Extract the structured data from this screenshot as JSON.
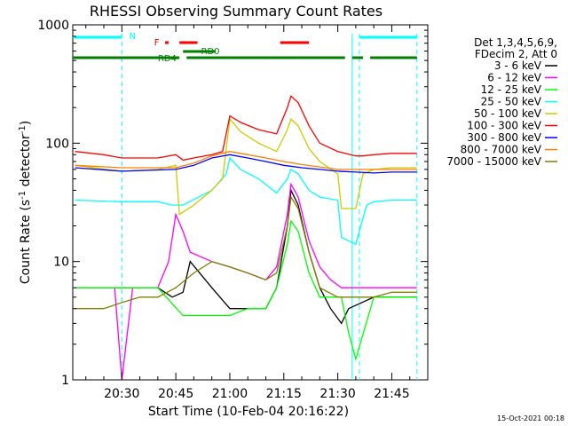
{
  "chart_data": {
    "type": "line",
    "title": "RHESSI Observing Summary Count Rates",
    "xlabel": "Start Time (10-Feb-04 20:16:22)",
    "ylabel": "Count Rate (s",
    "ylabel_sup1": "-1",
    "ylabel_mid": " detector",
    "ylabel_sup2": "-1",
    "ylabel_end": ")",
    "y_scale": "log",
    "ylim": [
      1,
      1000
    ],
    "xlim": [
      "20:16:22",
      "21:55:00"
    ],
    "x_ticks": [
      "20:30",
      "20:45",
      "21:00",
      "21:15",
      "21:30",
      "21:45"
    ],
    "y_ticks": [
      "1",
      "10",
      "100",
      "1000"
    ],
    "legend_placement": "right",
    "legend_header": [
      "Det 1,3,4,5,6,9,",
      "FDecim 2, Att 0"
    ],
    "series": [
      {
        "name": "3 - 6 keV",
        "color": "#000000",
        "x": [
          "20:17",
          "20:30",
          "20:33",
          "20:40",
          "20:44",
          "20:47",
          "20:49",
          "20:55",
          "21:00",
          "21:05",
          "21:10",
          "21:13",
          "21:16",
          "21:17",
          "21:19",
          "21:22",
          "21:25",
          "21:28",
          "21:31",
          "21:33",
          "21:40",
          "21:45",
          "21:50",
          "21:52"
        ],
        "y": [
          6,
          6,
          6,
          6,
          5,
          5.5,
          10,
          6,
          4,
          4,
          4,
          6,
          20,
          40,
          30,
          12,
          6,
          4,
          3,
          4,
          5,
          5,
          5,
          5
        ]
      },
      {
        "name": "6 - 12 keV",
        "color": "#ff00ff",
        "x": [
          "20:17",
          "20:28",
          "20:30",
          "20:33",
          "20:40",
          "20:43",
          "20:45",
          "20:47",
          "20:49",
          "20:55",
          "21:00",
          "21:05",
          "21:10",
          "21:13",
          "21:16",
          "21:17",
          "21:19",
          "21:22",
          "21:25",
          "21:28",
          "21:31",
          "21:33",
          "21:40",
          "21:45",
          "21:52"
        ],
        "y": [
          6,
          6,
          1,
          6,
          6,
          10,
          25,
          18,
          12,
          10,
          9,
          8,
          7,
          9,
          25,
          45,
          35,
          15,
          9,
          7,
          6,
          6,
          6,
          6,
          6
        ]
      },
      {
        "name": "12 - 25 keV",
        "color": "#00ff00",
        "x": [
          "20:17",
          "20:30",
          "20:40",
          "20:47",
          "21:00",
          "21:05",
          "21:10",
          "21:13",
          "21:16",
          "21:17",
          "21:19",
          "21:22",
          "21:25",
          "21:31",
          "21:33",
          "21:35",
          "21:40",
          "21:45",
          "21:52"
        ],
        "y": [
          6,
          6,
          6,
          3.5,
          3.5,
          4,
          4,
          6,
          14,
          22,
          18,
          8,
          5,
          5,
          2.5,
          1.5,
          5,
          5,
          5
        ]
      },
      {
        "name": "25 - 50 keV",
        "color": "#00ffff",
        "x": [
          "20:17",
          "20:30",
          "20:40",
          "20:44",
          "20:47",
          "20:55",
          "20:59",
          "21:00",
          "21:03",
          "21:08",
          "21:13",
          "21:16",
          "21:17",
          "21:19",
          "21:22",
          "21:25",
          "21:30",
          "21:31",
          "21:35",
          "21:38",
          "21:40",
          "21:45",
          "21:52"
        ],
        "y": [
          33,
          32,
          32,
          30,
          30,
          40,
          55,
          75,
          60,
          50,
          38,
          50,
          60,
          55,
          40,
          35,
          33,
          16,
          14,
          30,
          32,
          33,
          33
        ]
      },
      {
        "name": "50 - 100 keV",
        "color": "#cccc00",
        "x": [
          "20:17",
          "20:30",
          "20:40",
          "20:45",
          "20:46",
          "20:50",
          "20:55",
          "20:58",
          "21:00",
          "21:03",
          "21:08",
          "21:13",
          "21:16",
          "21:17",
          "21:19",
          "21:22",
          "21:25",
          "21:30",
          "21:31",
          "21:33",
          "21:35",
          "21:37",
          "21:40",
          "21:45",
          "21:52"
        ],
        "y": [
          65,
          58,
          60,
          65,
          25,
          30,
          40,
          50,
          160,
          125,
          100,
          85,
          130,
          160,
          140,
          90,
          70,
          55,
          28,
          28,
          28,
          55,
          60,
          62,
          62
        ]
      },
      {
        "name": "100 - 300 keV",
        "color": "#ff0000",
        "x": [
          "20:17",
          "20:25",
          "20:30",
          "20:40",
          "20:45",
          "20:47",
          "20:50",
          "20:55",
          "20:58",
          "21:00",
          "21:03",
          "21:08",
          "21:13",
          "21:16",
          "21:17",
          "21:19",
          "21:22",
          "21:25",
          "21:30",
          "21:35",
          "21:37",
          "21:40",
          "21:45",
          "21:52"
        ],
        "y": [
          85,
          80,
          75,
          75,
          80,
          72,
          75,
          80,
          85,
          170,
          150,
          130,
          120,
          200,
          250,
          220,
          140,
          100,
          85,
          78,
          78,
          80,
          82,
          82
        ]
      },
      {
        "name": "300 - 800 keV",
        "color": "#0000ff",
        "x": [
          "20:17",
          "20:30",
          "20:45",
          "20:50",
          "20:55",
          "21:00",
          "21:05",
          "21:10",
          "21:15",
          "21:20",
          "21:25",
          "21:30",
          "21:35",
          "21:40",
          "21:45",
          "21:52"
        ],
        "y": [
          62,
          58,
          60,
          65,
          75,
          80,
          75,
          70,
          65,
          62,
          60,
          58,
          57,
          56,
          57,
          57
        ]
      },
      {
        "name": "800 - 7000 keV",
        "color": "#ff8000",
        "x": [
          "20:17",
          "20:30",
          "20:45",
          "20:50",
          "20:55",
          "21:00",
          "21:05",
          "21:10",
          "21:15",
          "21:20",
          "21:25",
          "21:30",
          "21:35",
          "21:40",
          "21:45",
          "21:52"
        ],
        "y": [
          65,
          62,
          62,
          68,
          78,
          85,
          80,
          75,
          70,
          66,
          63,
          60,
          60,
          60,
          60,
          60
        ]
      },
      {
        "name": "7000 - 15000 keV",
        "color": "#808000",
        "x": [
          "20:17",
          "20:25",
          "20:30",
          "20:35",
          "20:40",
          "20:45",
          "20:50",
          "20:55",
          "21:00",
          "21:05",
          "21:10",
          "21:13",
          "21:16",
          "21:17",
          "21:19",
          "21:22",
          "21:25",
          "21:30",
          "21:35",
          "21:40",
          "21:45",
          "21:52"
        ],
        "y": [
          4,
          4,
          4.5,
          5,
          5,
          6,
          8,
          10,
          9,
          8,
          7,
          8,
          20,
          35,
          28,
          12,
          6,
          5,
          5,
          5,
          5.5,
          5.5
        ]
      }
    ],
    "flags": [
      {
        "name": "N",
        "color": "#00ffff",
        "segments": [
          [
            "20:16",
            "20:30"
          ],
          [
            "21:36",
            "21:52"
          ]
        ]
      },
      {
        "name": "F",
        "color": "#ff0000",
        "segments": [
          [
            "20:42",
            "20:43"
          ],
          [
            "20:46",
            "20:51"
          ],
          [
            "21:14",
            "21:22"
          ]
        ]
      },
      {
        "name": "RD0",
        "color": "#008000",
        "segments": [
          [
            "20:47",
            "20:56"
          ]
        ]
      },
      {
        "name": "RD4",
        "color": "#008000",
        "segments": [
          [
            "20:16",
            "20:46"
          ],
          [
            "20:48",
            "21:00"
          ],
          [
            "21:00",
            "21:32"
          ],
          [
            "21:34",
            "21:37"
          ],
          [
            "21:39",
            "21:52"
          ]
        ]
      }
    ],
    "flag_labels": [
      "N",
      "F",
      "RD0",
      "RD4"
    ]
  },
  "footer": {
    "timestamp": "15-Oct-2021 00:18"
  }
}
